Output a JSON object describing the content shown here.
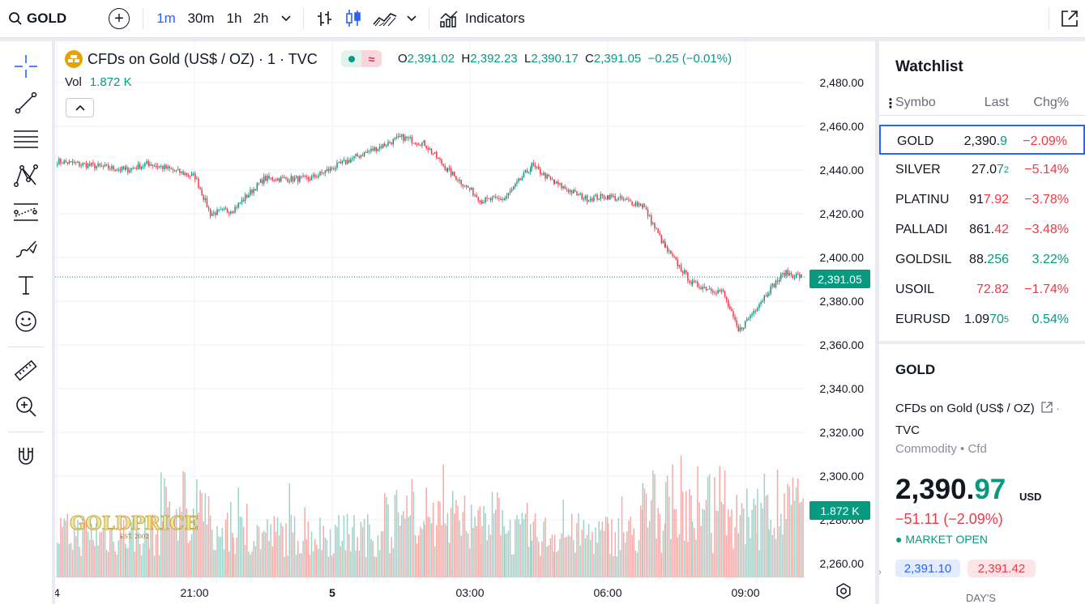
{
  "toolbar": {
    "symbol": "GOLD",
    "intervals": [
      "1m",
      "30m",
      "1h",
      "2h"
    ],
    "active_interval": "1m",
    "indicators_label": "Indicators"
  },
  "legend": {
    "title": "CFDs on Gold (US$ / OZ) · 1 · TVC",
    "ohlc": {
      "o": "2,391.02",
      "h": "2,392.23",
      "l": "2,390.17",
      "c": "2,391.05",
      "change": "−0.25 (−0.01%)"
    },
    "vol_label": "Vol",
    "vol_value": "1.872 K"
  },
  "price_axis": {
    "ticks": [
      "2,480.00",
      "2,460.00",
      "2,440.00",
      "2,420.00",
      "2,400.00",
      "2,380.00",
      "2,360.00",
      "2,340.00",
      "2,320.00",
      "2,300.00",
      "2,280.00",
      "2,260.00"
    ],
    "last_price_tag": "2,391.05",
    "volume_tag": "1.872 K"
  },
  "time_axis": {
    "labels": [
      "4",
      "21:00",
      "5",
      "03:00",
      "06:00",
      "09:00"
    ]
  },
  "chart_data": {
    "type": "candlestick",
    "interval": "1m",
    "ylim": [
      2255,
      2485
    ],
    "x_ticks": [
      "4",
      "21:00",
      "5",
      "03:00",
      "06:00",
      "09:00"
    ],
    "price_path": [
      {
        "t": "18:00",
        "y": 2444
      },
      {
        "t": "19:30",
        "y": 2440
      },
      {
        "t": "20:00",
        "y": 2443
      },
      {
        "t": "21:00",
        "y": 2437
      },
      {
        "t": "21:20",
        "y": 2420
      },
      {
        "t": "21:50",
        "y": 2422
      },
      {
        "t": "22:30",
        "y": 2436
      },
      {
        "t": "23:30",
        "y": 2436
      },
      {
        "t": "00:30",
        "y": 2446
      },
      {
        "t": "01:30",
        "y": 2455
      },
      {
        "t": "02:00",
        "y": 2452
      },
      {
        "t": "02:30",
        "y": 2440
      },
      {
        "t": "03:15",
        "y": 2426
      },
      {
        "t": "03:45",
        "y": 2427
      },
      {
        "t": "04:20",
        "y": 2442
      },
      {
        "t": "04:50",
        "y": 2434
      },
      {
        "t": "05:30",
        "y": 2427
      },
      {
        "t": "06:00",
        "y": 2428
      },
      {
        "t": "06:45",
        "y": 2424
      },
      {
        "t": "07:15",
        "y": 2404
      },
      {
        "t": "07:50",
        "y": 2388
      },
      {
        "t": "08:30",
        "y": 2384
      },
      {
        "t": "08:50",
        "y": 2366
      },
      {
        "t": "09:15",
        "y": 2378
      },
      {
        "t": "09:30",
        "y": 2385
      },
      {
        "t": "09:50",
        "y": 2393
      },
      {
        "t": "10:15",
        "y": 2391
      }
    ],
    "last_close": 2391.05,
    "volume_last": "1.872 K"
  },
  "watchlist": {
    "title": "Watchlist",
    "columns": [
      "Symbo",
      "Last",
      "Chg%"
    ],
    "rows": [
      {
        "sym": "GOLD",
        "last_main": "2,390.",
        "last_tail": "9",
        "chg": "−2.09%",
        "dir": "neg",
        "tail_dir": "pos"
      },
      {
        "sym": "SILVER",
        "last_main": "27.0",
        "last_tail": "7",
        "last_sup": "2",
        "chg": "−5.14%",
        "dir": "neg",
        "tail_dir": "pos"
      },
      {
        "sym": "PLATINU",
        "last_main": "91",
        "last_tail": "7.92",
        "chg": "−3.78%",
        "dir": "neg",
        "tail_dir": "neg"
      },
      {
        "sym": "PALLADI",
        "last_main": "861.",
        "last_tail": "42",
        "chg": "−3.48%",
        "dir": "neg",
        "tail_dir": "neg"
      },
      {
        "sym": "GOLDSIL",
        "last_main": "88.",
        "last_tail": "256",
        "chg": "3.22%",
        "dir": "pos",
        "tail_dir": "pos"
      },
      {
        "sym": "USOIL",
        "last_main": "",
        "last_tail": "72.82",
        "chg": "−1.74%",
        "dir": "neg",
        "tail_dir": "neg"
      },
      {
        "sym": "EURUSD",
        "last_main": "1.09",
        "last_tail": "70",
        "last_sup": "5",
        "chg": "0.54%",
        "dir": "pos",
        "tail_dir": "pos"
      }
    ]
  },
  "detail": {
    "symbol": "GOLD",
    "description": "CFDs on Gold (US$ / OZ)",
    "exchange": "TVC",
    "type": "Commodity",
    "subtype": "Cfd",
    "price_main": "2,390.",
    "price_tail": "97",
    "currency": "USD",
    "change": "−51.11 (−2.09%)",
    "status": "MARKET OPEN",
    "bid": "2,391.10",
    "ask": "2,391.42",
    "range_label": "DAY'S"
  },
  "colors": {
    "up": "#089981",
    "down": "#f23645",
    "accent": "#2962ff",
    "volume_up": "#9fd3c9",
    "volume_down": "#f7a9a7"
  }
}
